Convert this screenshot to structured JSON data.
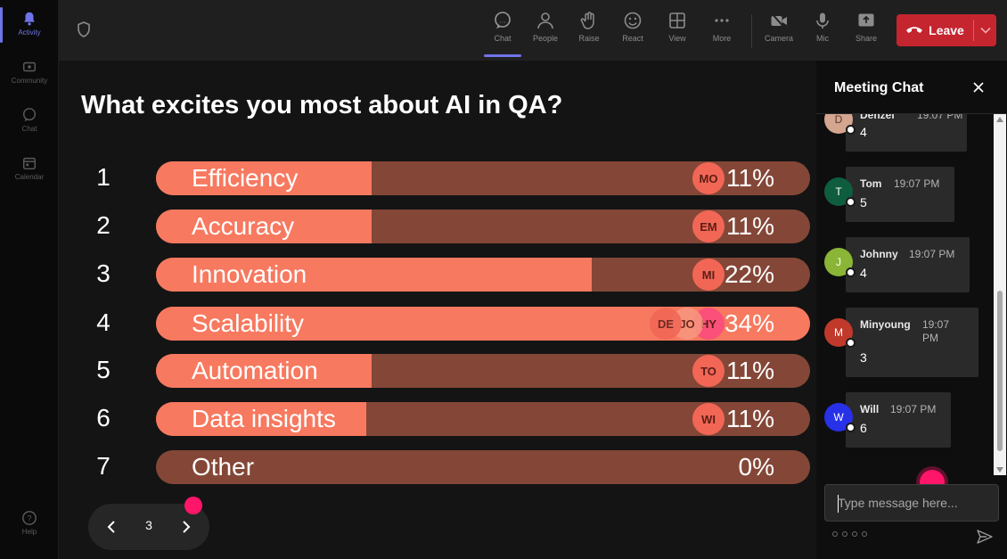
{
  "rail": {
    "items": [
      {
        "label": "Activity",
        "icon": "bell-icon",
        "active": true
      },
      {
        "label": "Community",
        "icon": "community-icon",
        "active": false
      },
      {
        "label": "Chat",
        "icon": "chat-icon",
        "active": false
      },
      {
        "label": "Calendar",
        "icon": "calendar-icon",
        "active": false
      }
    ],
    "help_label": "Help"
  },
  "toolbar": {
    "chat": "Chat",
    "people": "People",
    "raise": "Raise",
    "react": "React",
    "view": "View",
    "more": "More",
    "camera": "Camera",
    "mic": "Mic",
    "share": "Share",
    "leave": "Leave"
  },
  "poll": {
    "question": "What excites you most about AI in QA?",
    "options": [
      {
        "num": "1",
        "label": "Efficiency",
        "percent": "11%",
        "fill": 0.33,
        "avatars": [
          {
            "initials": "MO",
            "color": "#f26656"
          }
        ]
      },
      {
        "num": "2",
        "label": "Accuracy",
        "percent": "11%",
        "fill": 0.33,
        "avatars": [
          {
            "initials": "EM",
            "color": "#f26656"
          }
        ]
      },
      {
        "num": "3",
        "label": "Innovation",
        "percent": "22%",
        "fill": 0.666,
        "avatars": [
          {
            "initials": "MI",
            "color": "#f26656"
          }
        ]
      },
      {
        "num": "4",
        "label": "Scalability",
        "percent": "34%",
        "fill": 1.0,
        "avatars": [
          {
            "initials": "HY",
            "color": "#fb5079"
          },
          {
            "initials": "JO",
            "color": "#f7987f"
          },
          {
            "initials": "DE",
            "color": "#f26656"
          }
        ]
      },
      {
        "num": "5",
        "label": "Automation",
        "percent": "11%",
        "fill": 0.33,
        "avatars": [
          {
            "initials": "TO",
            "color": "#f26656"
          }
        ]
      },
      {
        "num": "6",
        "label": "Data insights",
        "percent": "11%",
        "fill": 0.321,
        "avatars": [
          {
            "initials": "WI",
            "color": "#f26656"
          }
        ]
      },
      {
        "num": "7",
        "label": "Other",
        "percent": "0%",
        "fill": 0.0,
        "avatars": []
      }
    ],
    "page": "3"
  },
  "chat": {
    "title": "Meeting Chat",
    "messages": [
      {
        "name": "Denzel",
        "time": "19:07 PM",
        "text": "4",
        "initial": "D",
        "color": "#d4a58f"
      },
      {
        "name": "Tom",
        "time": "19:07 PM",
        "text": "5",
        "initial": "T",
        "color": "#0f5d3f"
      },
      {
        "name": "Johnny",
        "time": "19:07 PM",
        "text": "4",
        "initial": "J",
        "color": "#8ab537"
      },
      {
        "name": "Minyoung",
        "time_line1": "19:07",
        "time_line2": "PM",
        "text": "3",
        "initial": "M",
        "color": "#c0392b"
      },
      {
        "name": "Will",
        "time": "19:07 PM",
        "text": "6",
        "initial": "W",
        "color": "#2731e8"
      }
    ],
    "input_placeholder": "Type message here..."
  },
  "colors": {
    "accent": "#6f74e8",
    "bar_fill": "#f7795f",
    "bar_track": "#844737",
    "leave": "#c4252f",
    "pink_dot": "#ff1569"
  }
}
